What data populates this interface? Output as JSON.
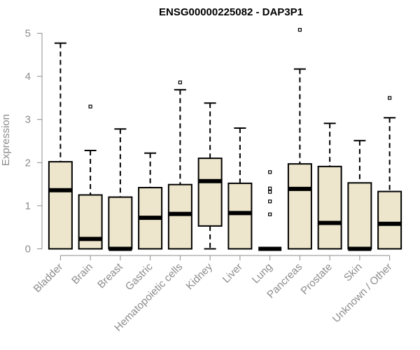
{
  "chart_data": {
    "type": "box",
    "title": "ENSG00000225082 - DAP3P1",
    "xlabel": "",
    "ylabel": "Expression",
    "ylim": [
      0,
      5
    ],
    "yticks": [
      0,
      1,
      2,
      3,
      4,
      5
    ],
    "grid": false,
    "legend": "none",
    "colors": {
      "box_fill": "#ede6cc",
      "box_stroke": "#000000",
      "axis": "#8c8c8c",
      "axis_text": "#8c8c8c",
      "title": "#000000"
    },
    "categories": [
      "Bladder",
      "Brain",
      "Breast",
      "Gastric",
      "Hematopoietic cells",
      "Kidney",
      "Liver",
      "Lung",
      "Pancreas",
      "Prostate",
      "Skin",
      "Unknown / Other"
    ],
    "boxes": [
      {
        "category": "Bladder",
        "whisker_low": 0.0,
        "q1": 0.0,
        "median": 1.36,
        "q3": 2.02,
        "whisker_high": 4.77,
        "outliers": []
      },
      {
        "category": "Brain",
        "whisker_low": 0.0,
        "q1": 0.0,
        "median": 0.23,
        "q3": 1.25,
        "whisker_high": 2.28,
        "outliers": [
          3.3
        ]
      },
      {
        "category": "Breast",
        "whisker_low": 0.0,
        "q1": 0.0,
        "median": 0.0,
        "q3": 1.2,
        "whisker_high": 2.78,
        "outliers": []
      },
      {
        "category": "Gastric",
        "whisker_low": 0.0,
        "q1": 0.0,
        "median": 0.72,
        "q3": 1.42,
        "whisker_high": 2.22,
        "outliers": []
      },
      {
        "category": "Hematopoietic cells",
        "whisker_low": 0.0,
        "q1": 0.0,
        "median": 0.81,
        "q3": 1.49,
        "whisker_high": 3.69,
        "outliers": [
          3.86
        ]
      },
      {
        "category": "Kidney",
        "whisker_low": 0.0,
        "q1": 0.53,
        "median": 1.57,
        "q3": 2.1,
        "whisker_high": 3.38,
        "outliers": []
      },
      {
        "category": "Liver",
        "whisker_low": 0.0,
        "q1": 0.0,
        "median": 0.83,
        "q3": 1.52,
        "whisker_high": 2.8,
        "outliers": []
      },
      {
        "category": "Lung",
        "whisker_low": 0.0,
        "q1": 0.0,
        "median": 0.0,
        "q3": 0.0,
        "whisker_high": 0.0,
        "outliers": [
          0.8,
          1.1,
          1.32,
          1.4,
          1.78
        ]
      },
      {
        "category": "Pancreas",
        "whisker_low": 0.0,
        "q1": 0.0,
        "median": 1.39,
        "q3": 1.97,
        "whisker_high": 4.17,
        "outliers": [
          5.08
        ]
      },
      {
        "category": "Prostate",
        "whisker_low": 0.0,
        "q1": 0.0,
        "median": 0.6,
        "q3": 1.91,
        "whisker_high": 2.91,
        "outliers": []
      },
      {
        "category": "Skin",
        "whisker_low": 0.0,
        "q1": 0.0,
        "median": 0.0,
        "q3": 1.53,
        "whisker_high": 2.51,
        "outliers": []
      },
      {
        "category": "Unknown / Other",
        "whisker_low": 0.0,
        "q1": 0.0,
        "median": 0.58,
        "q3": 1.33,
        "whisker_high": 3.04,
        "outliers": [
          3.5
        ]
      }
    ]
  }
}
